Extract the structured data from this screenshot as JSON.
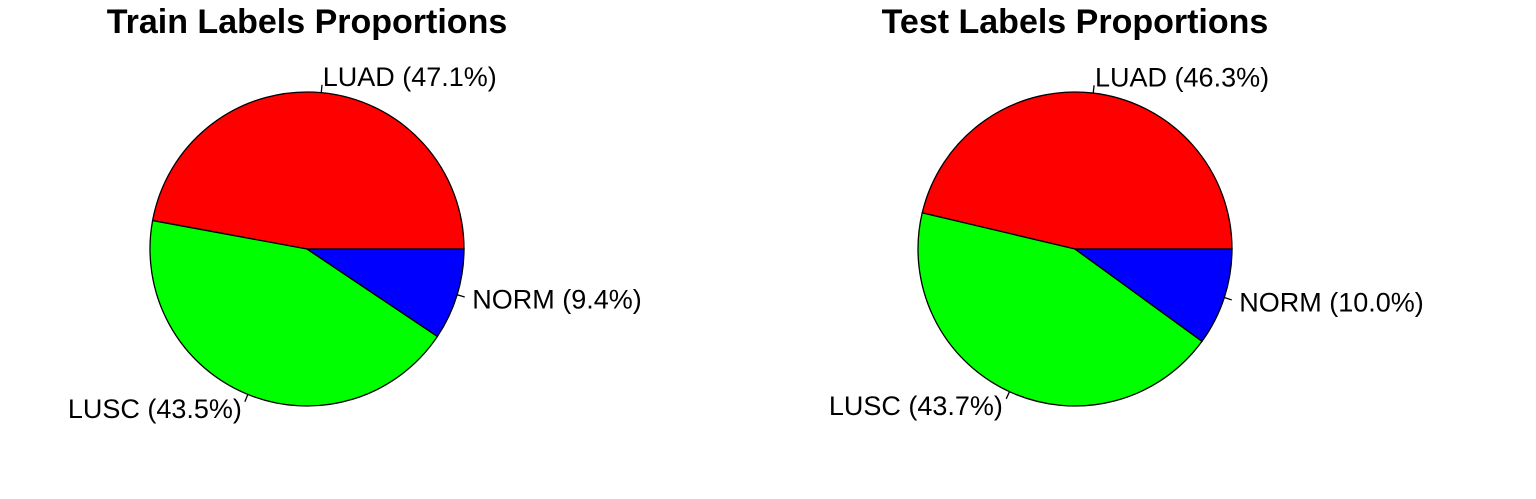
{
  "chart_data": [
    {
      "type": "pie",
      "title": "Train Labels Proportions",
      "slices": [
        {
          "label": "LUAD",
          "value": 47.1,
          "display": "LUAD  (47.1%)",
          "color": "#ff0000"
        },
        {
          "label": "LUSC",
          "value": 43.5,
          "display": "LUSC  (43.5%)",
          "color": "#00ff00"
        },
        {
          "label": "NORM",
          "value": 9.4,
          "display": "NORM  (9.4%)",
          "color": "#0000ff"
        }
      ],
      "start_angle_deg": 0,
      "direction": "counterclockwise",
      "legend": "none"
    },
    {
      "type": "pie",
      "title": "Test Labels Proportions",
      "slices": [
        {
          "label": "LUAD",
          "value": 46.3,
          "display": "LUAD  (46.3%)",
          "color": "#ff0000"
        },
        {
          "label": "LUSC",
          "value": 43.7,
          "display": "LUSC  (43.7%)",
          "color": "#00ff00"
        },
        {
          "label": "NORM",
          "value": 10.0,
          "display": "NORM  (10.0%)",
          "color": "#0000ff"
        }
      ],
      "start_angle_deg": 0,
      "direction": "counterclockwise",
      "legend": "none"
    }
  ]
}
